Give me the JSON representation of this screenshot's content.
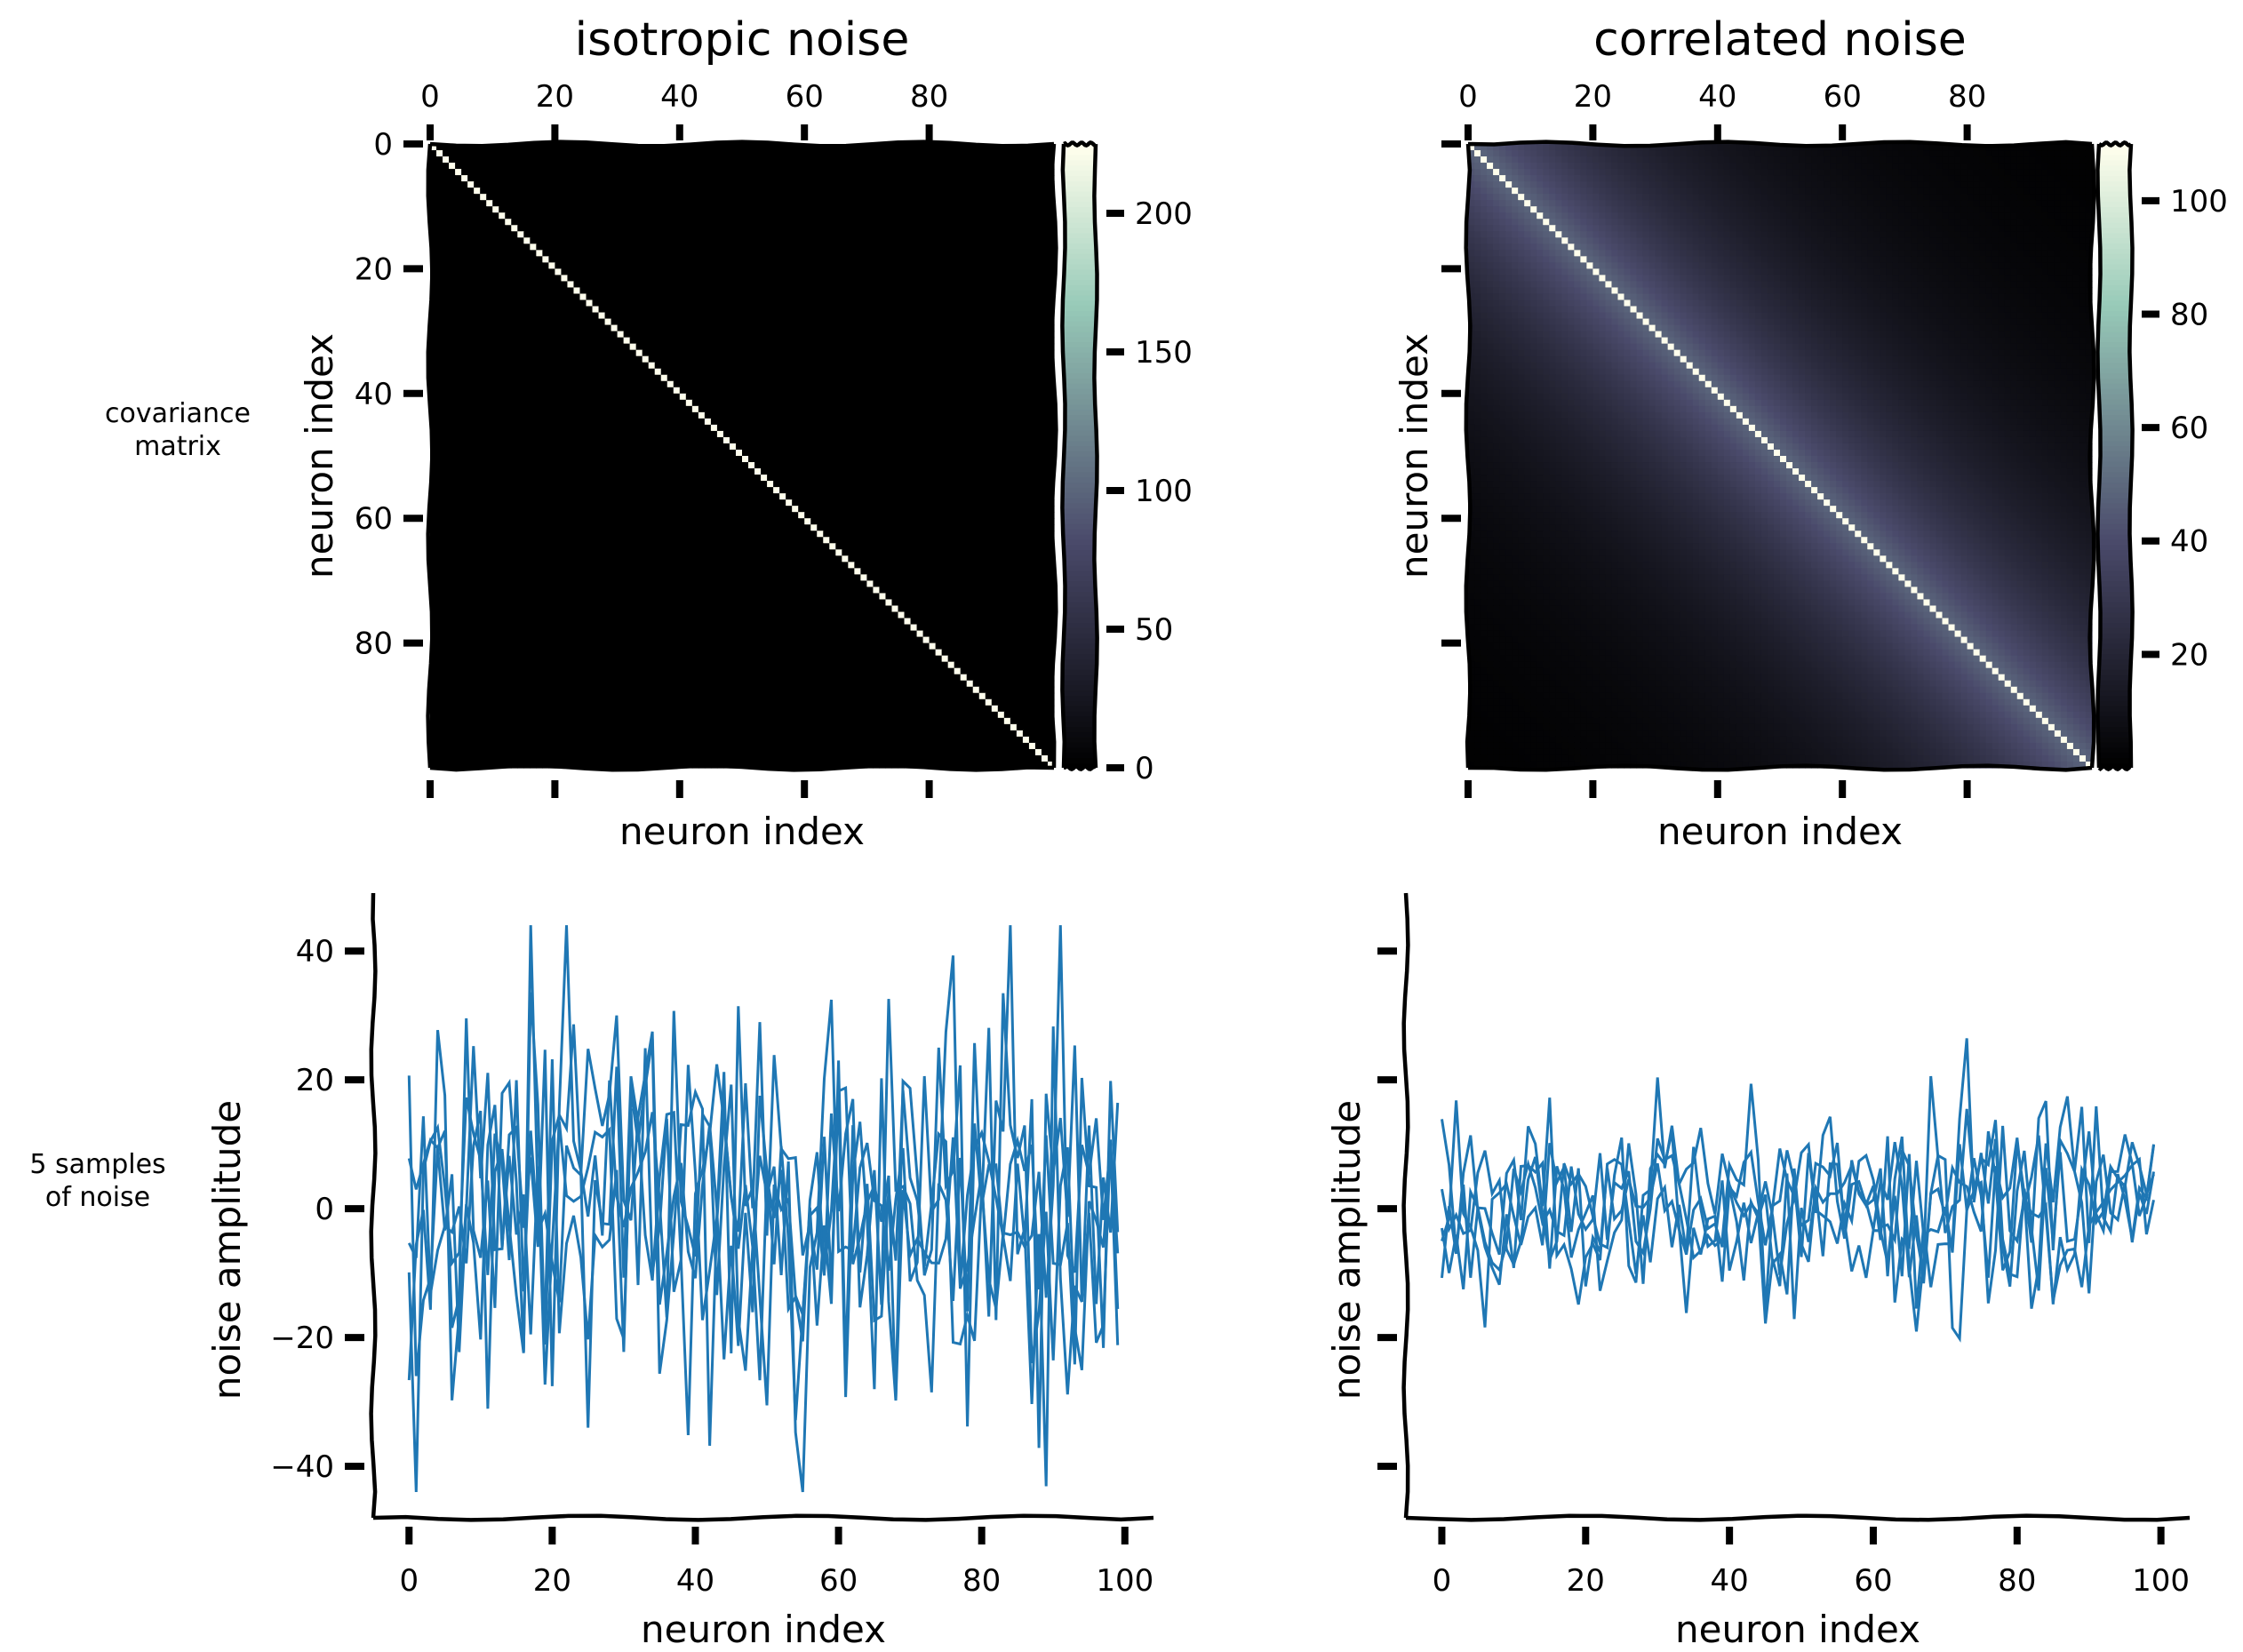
{
  "chart_data": [
    {
      "panel": "top-left",
      "type": "heatmap",
      "title": "isotropic noise",
      "xlabel": "neuron index",
      "ylabel": "neuron index",
      "matrix_size": 100,
      "description_of_values": "diagonal",
      "diagonal_value": 225,
      "off_diagonal_value": 0,
      "x_ticks": [
        0,
        20,
        40,
        60,
        80
      ],
      "x_tick_labels": [
        "0",
        "20",
        "40",
        "60",
        "80"
      ],
      "y_ticks": [
        0,
        20,
        40,
        60,
        80
      ],
      "y_tick_labels": [
        "0",
        "20",
        "40",
        "60",
        "80"
      ],
      "colorbar": {
        "min": 0,
        "max": 225,
        "ticks": [
          0,
          50,
          100,
          150,
          200
        ],
        "tick_labels": [
          "0",
          "50",
          "100",
          "150",
          "200"
        ]
      },
      "colormap": "bone"
    },
    {
      "panel": "top-right",
      "type": "heatmap",
      "title": "correlated noise",
      "xlabel": "neuron index",
      "ylabel": "neuron index",
      "matrix_size": 100,
      "description_of_values": "decaying",
      "diagonal_value": 110,
      "near_diagonal_value": 50,
      "far_value": 0,
      "x_ticks": [
        0,
        20,
        40,
        60,
        80
      ],
      "x_tick_labels": [
        "0",
        "20",
        "40",
        "60",
        "80"
      ],
      "y_ticks": [
        0,
        20,
        40,
        60,
        80
      ],
      "y_tick_labels": [],
      "colorbar": {
        "min": 0,
        "max": 110,
        "ticks": [
          20,
          40,
          60,
          80,
          100
        ],
        "tick_labels": [
          "20",
          "40",
          "60",
          "80",
          "100"
        ]
      },
      "colormap": "bone"
    },
    {
      "panel": "bottom-left",
      "type": "line",
      "xlabel": "neuron index",
      "ylabel": "noise amplitude",
      "xlim": [
        -5,
        104
      ],
      "ylim": [
        -48,
        49
      ],
      "x_ticks": [
        0,
        20,
        40,
        60,
        80,
        100
      ],
      "x_tick_labels": [
        "0",
        "20",
        "40",
        "60",
        "80",
        "100"
      ],
      "y_ticks": [
        -40,
        -20,
        0,
        20,
        40
      ],
      "y_tick_labels": [
        "−40",
        "−20",
        "0",
        "20",
        "40"
      ],
      "n_series": 5,
      "n_points": 100,
      "approx_std": 15,
      "color": "#1f77b4"
    },
    {
      "panel": "bottom-right",
      "type": "line",
      "xlabel": "neuron index",
      "ylabel": "noise amplitude",
      "xlim": [
        -5,
        104
      ],
      "ylim": [
        -48,
        49
      ],
      "x_ticks": [
        0,
        20,
        40,
        60,
        80,
        100
      ],
      "x_tick_labels": [
        "0",
        "20",
        "40",
        "60",
        "80",
        "100"
      ],
      "y_ticks": [
        -40,
        -20,
        0,
        20,
        40
      ],
      "y_tick_labels": [],
      "n_series": 5,
      "n_points": 100,
      "approx_std": 8,
      "color": "#1f77b4"
    }
  ],
  "row_labels": [
    {
      "lines": [
        "covariance",
        "matrix"
      ]
    },
    {
      "lines": [
        "5 samples",
        "of noise"
      ]
    }
  ]
}
